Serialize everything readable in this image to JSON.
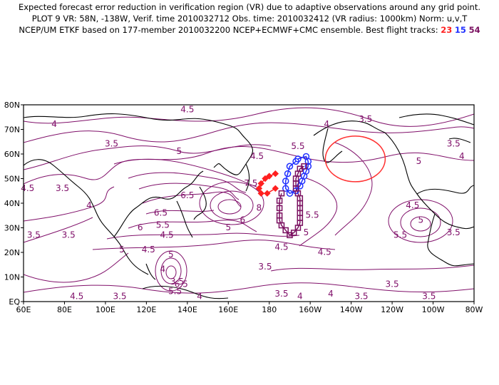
{
  "header": {
    "line1": "Expected forecast error reduction in verification region (VR) due to adaptive observations around any grid point.",
    "line2": "PLOT 9 VR: 58N, -138W, Verif. time 2010032712 Obs. time: 2010032412 (VR radius: 1000km) Norm: u,v,T",
    "line3_prefix": "NCEP/UM ETKF based on 177-member 2010032200 NCEP+ECMWF+CMC ensemble. Best flight tracks:",
    "track_a": "23",
    "track_b": "15",
    "track_c": "54"
  },
  "map": {
    "x_ticks": [
      "60E",
      "80E",
      "100E",
      "120E",
      "140E",
      "160E",
      "180",
      "160W",
      "140W",
      "120W",
      "100W",
      "80W"
    ],
    "y_ticks": [
      "EQ",
      "10N",
      "20N",
      "30N",
      "40N",
      "50N",
      "60N",
      "70N",
      "80N"
    ],
    "lon_range": [
      60,
      280
    ],
    "lat_range": [
      0,
      80
    ],
    "contour_color": "#80106a",
    "contour_labels": [
      {
        "t": "4.5",
        "lon": 140,
        "lat": 77
      },
      {
        "t": "4",
        "lon": 75,
        "lat": 71
      },
      {
        "t": "3.5",
        "lon": 227,
        "lat": 73
      },
      {
        "t": "4",
        "lon": 208,
        "lat": 71
      },
      {
        "t": "3.5",
        "lon": 103,
        "lat": 63
      },
      {
        "t": "3.5",
        "lon": 270,
        "lat": 63
      },
      {
        "t": "4.5",
        "lon": 174,
        "lat": 58
      },
      {
        "t": "5.5",
        "lon": 194,
        "lat": 62
      },
      {
        "t": "5",
        "lon": 136,
        "lat": 60
      },
      {
        "t": "4",
        "lon": 274,
        "lat": 58
      },
      {
        "t": "5",
        "lon": 253,
        "lat": 56
      },
      {
        "t": "7.5",
        "lon": 171,
        "lat": 47
      },
      {
        "t": "6.5",
        "lon": 140,
        "lat": 42
      },
      {
        "t": "8",
        "lon": 175,
        "lat": 37
      },
      {
        "t": "6.5",
        "lon": 127,
        "lat": 35
      },
      {
        "t": "6",
        "lon": 167,
        "lat": 32
      },
      {
        "t": "5.5",
        "lon": 128,
        "lat": 30
      },
      {
        "t": "5",
        "lon": 160,
        "lat": 29
      },
      {
        "t": "6",
        "lon": 117,
        "lat": 29
      },
      {
        "t": "4.5",
        "lon": 62,
        "lat": 45
      },
      {
        "t": "3.5",
        "lon": 79,
        "lat": 45
      },
      {
        "t": "4",
        "lon": 92,
        "lat": 38
      },
      {
        "t": "4.5",
        "lon": 130,
        "lat": 26
      },
      {
        "t": "3.5",
        "lon": 65,
        "lat": 26
      },
      {
        "t": "3.5",
        "lon": 82,
        "lat": 26
      },
      {
        "t": "4.5",
        "lon": 250,
        "lat": 38
      },
      {
        "t": "5",
        "lon": 254,
        "lat": 32
      },
      {
        "t": "5.5",
        "lon": 201,
        "lat": 34
      },
      {
        "t": "5.5",
        "lon": 244,
        "lat": 26
      },
      {
        "t": "3.5",
        "lon": 270,
        "lat": 27
      },
      {
        "t": "5",
        "lon": 198,
        "lat": 27
      },
      {
        "t": "4.5",
        "lon": 207,
        "lat": 19
      },
      {
        "t": "4.5",
        "lon": 186,
        "lat": 21
      },
      {
        "t": "5",
        "lon": 108,
        "lat": 20
      },
      {
        "t": "4.5",
        "lon": 121,
        "lat": 20
      },
      {
        "t": "5",
        "lon": 132,
        "lat": 18
      },
      {
        "t": "4",
        "lon": 128,
        "lat": 12
      },
      {
        "t": "6.5",
        "lon": 137,
        "lat": 6
      },
      {
        "t": "5.5",
        "lon": 134,
        "lat": 3
      },
      {
        "t": "3.5",
        "lon": 135,
        "lat": 7
      },
      {
        "t": "3.5",
        "lon": 178,
        "lat": 13
      },
      {
        "t": "4.5",
        "lon": 86,
        "lat": 1
      },
      {
        "t": "3.5",
        "lon": 107,
        "lat": 1
      },
      {
        "t": "4",
        "lon": 146,
        "lat": 1
      },
      {
        "t": "3.5",
        "lon": 186,
        "lat": 2
      },
      {
        "t": "4",
        "lon": 195,
        "lat": 1
      },
      {
        "t": "4",
        "lon": 210,
        "lat": 2
      },
      {
        "t": "3.5",
        "lon": 240,
        "lat": 6
      },
      {
        "t": "3.5",
        "lon": 225,
        "lat": 1
      },
      {
        "t": "3.5",
        "lon": 258,
        "lat": 1
      }
    ],
    "verification_region": {
      "lon": 222,
      "lat": 58,
      "color": "#ff3030"
    },
    "track_colors": {
      "a": "#ff2020",
      "b": "#2030ff",
      "c": "#7a1060"
    },
    "track_a_points": [
      [
        183,
        52
      ],
      [
        180,
        51
      ],
      [
        178,
        50
      ],
      [
        176,
        48
      ],
      [
        175,
        46
      ],
      [
        176,
        44
      ],
      [
        179,
        44
      ],
      [
        183,
        46
      ]
    ],
    "track_b_points": [
      [
        194,
        58
      ],
      [
        198,
        59
      ],
      [
        199,
        57
      ],
      [
        199,
        55
      ],
      [
        198,
        53
      ],
      [
        197,
        51
      ],
      [
        196,
        49
      ],
      [
        195,
        47
      ],
      [
        193,
        45
      ],
      [
        190,
        44
      ],
      [
        188,
        46
      ],
      [
        188,
        49
      ],
      [
        189,
        52
      ],
      [
        190,
        55
      ],
      [
        193,
        57
      ]
    ],
    "track_c_points": [
      [
        197,
        55
      ],
      [
        195,
        54
      ],
      [
        194,
        52
      ],
      [
        193,
        50
      ],
      [
        193,
        48
      ],
      [
        193,
        46
      ],
      [
        194,
        44
      ],
      [
        195,
        42
      ],
      [
        195,
        40
      ],
      [
        195,
        38
      ],
      [
        195,
        36
      ],
      [
        195,
        34
      ],
      [
        195,
        32
      ],
      [
        194,
        30
      ],
      [
        192,
        28
      ],
      [
        190,
        27
      ],
      [
        188,
        29
      ],
      [
        186,
        31
      ],
      [
        185,
        33
      ],
      [
        185,
        35
      ],
      [
        185,
        38
      ],
      [
        185,
        41
      ],
      [
        186,
        44
      ]
    ]
  }
}
